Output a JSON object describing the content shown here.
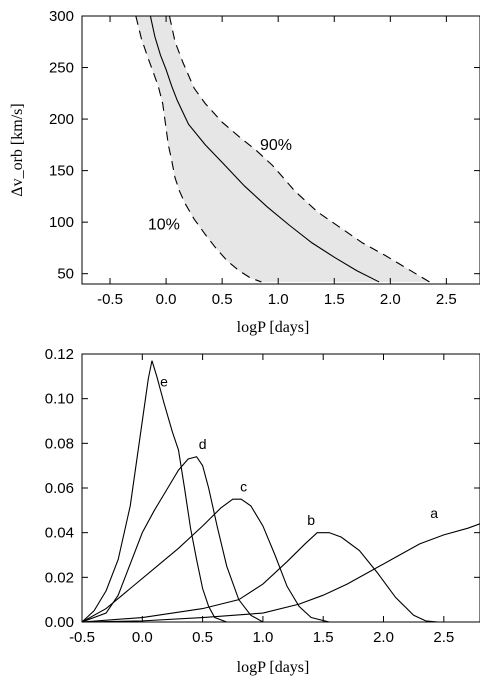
{
  "chart_data": [
    {
      "type": "area",
      "xlabel": "logP [days]",
      "ylabel": "Δv_orb [km/s]",
      "xlim": [
        -0.75,
        2.8
      ],
      "ylim": [
        40,
        300
      ],
      "xticks": [
        -0.5,
        0.0,
        0.5,
        1.0,
        1.5,
        2.0,
        2.5
      ],
      "xtick_labels": [
        "-0.5",
        "0.0",
        "0.5",
        "1.0",
        "1.5",
        "2.0",
        "2.5"
      ],
      "yticks": [
        50,
        100,
        150,
        200,
        250,
        300
      ],
      "ytick_labels": [
        "50",
        "100",
        "150",
        "200",
        "250",
        "300"
      ],
      "grid": false,
      "band_color": "#e6e6e6",
      "series": [
        {
          "name": "90%",
          "style": "dashed",
          "x": [
            0.03,
            0.08,
            0.15,
            0.25,
            0.35,
            0.5,
            0.65,
            0.8,
            0.95,
            1.15,
            1.35,
            1.55,
            1.75,
            1.95,
            2.15,
            2.35
          ],
          "y": [
            300,
            275,
            255,
            230,
            215,
            197,
            183,
            170,
            155,
            130,
            110,
            95,
            80,
            68,
            55,
            42
          ]
        },
        {
          "name": "",
          "style": "solid",
          "x": [
            -0.14,
            -0.1,
            -0.05,
            0.0,
            0.05,
            0.1,
            0.2,
            0.35,
            0.5,
            0.7,
            0.9,
            1.1,
            1.3,
            1.5,
            1.7,
            1.9
          ],
          "y": [
            300,
            280,
            262,
            248,
            232,
            218,
            195,
            175,
            158,
            135,
            115,
            97,
            80,
            66,
            53,
            42
          ]
        },
        {
          "name": "10%",
          "style": "dashed",
          "x": [
            -0.27,
            -0.22,
            -0.17,
            -0.12,
            -0.07,
            -0.03,
            0.02,
            0.05,
            0.08,
            0.12,
            0.17,
            0.25,
            0.35,
            0.45,
            0.55,
            0.65,
            0.75,
            0.85
          ],
          "y": [
            300,
            278,
            262,
            247,
            232,
            215,
            175,
            160,
            143,
            130,
            118,
            103,
            88,
            74,
            62,
            53,
            46,
            42
          ]
        }
      ],
      "annotations": [
        {
          "text": "90%",
          "x": 0.98,
          "y": 170
        },
        {
          "text": "10%",
          "x": -0.02,
          "y": 93
        }
      ]
    },
    {
      "type": "line",
      "xlabel": "logP [days]",
      "ylabel": "",
      "xlim": [
        -0.5,
        2.8
      ],
      "ylim": [
        0,
        0.12
      ],
      "xticks": [
        -0.5,
        0.0,
        0.5,
        1.0,
        1.5,
        2.0,
        2.5
      ],
      "xtick_labels": [
        "-0.5",
        "0.0",
        "0.5",
        "1.0",
        "1.5",
        "2.0",
        "2.5"
      ],
      "yticks": [
        0.0,
        0.02,
        0.04,
        0.06,
        0.08,
        0.1,
        0.12
      ],
      "ytick_labels": [
        "0.00",
        "0.02",
        "0.04",
        "0.06",
        "0.08",
        "0.10",
        "0.12"
      ],
      "grid": false,
      "series": [
        {
          "name": "a",
          "x": [
            -0.5,
            0.0,
            0.5,
            1.0,
            1.3,
            1.5,
            1.7,
            1.9,
            2.1,
            2.3,
            2.5,
            2.7,
            2.8
          ],
          "y": [
            0.0,
            0.0005,
            0.002,
            0.004,
            0.008,
            0.012,
            0.017,
            0.023,
            0.029,
            0.035,
            0.039,
            0.042,
            0.044
          ]
        },
        {
          "name": "b",
          "x": [
            -0.5,
            0.0,
            0.5,
            0.8,
            1.0,
            1.2,
            1.35,
            1.45,
            1.55,
            1.65,
            1.8,
            1.95,
            2.1,
            2.25,
            2.35,
            2.45
          ],
          "y": [
            0.0,
            0.002,
            0.006,
            0.01,
            0.017,
            0.027,
            0.035,
            0.04,
            0.04,
            0.038,
            0.032,
            0.022,
            0.011,
            0.003,
            0.0005,
            0.0
          ]
        },
        {
          "name": "c",
          "x": [
            -0.5,
            -0.3,
            -0.1,
            0.1,
            0.3,
            0.5,
            0.65,
            0.75,
            0.82,
            0.9,
            1.0,
            1.1,
            1.2,
            1.3,
            1.4,
            1.55
          ],
          "y": [
            0.0,
            0.006,
            0.015,
            0.024,
            0.033,
            0.043,
            0.051,
            0.055,
            0.055,
            0.052,
            0.043,
            0.03,
            0.016,
            0.007,
            0.002,
            0.0
          ]
        },
        {
          "name": "d",
          "x": [
            -0.5,
            -0.3,
            -0.2,
            -0.1,
            0.0,
            0.1,
            0.2,
            0.3,
            0.38,
            0.45,
            0.5,
            0.55,
            0.62,
            0.7,
            0.8,
            0.9,
            1.0
          ],
          "y": [
            0.0,
            0.004,
            0.012,
            0.026,
            0.04,
            0.05,
            0.059,
            0.068,
            0.073,
            0.074,
            0.07,
            0.06,
            0.043,
            0.025,
            0.01,
            0.003,
            0.0
          ]
        },
        {
          "name": "e",
          "x": [
            -0.5,
            -0.4,
            -0.3,
            -0.2,
            -0.1,
            0.0,
            0.05,
            0.08,
            0.12,
            0.18,
            0.25,
            0.3,
            0.35,
            0.4,
            0.45,
            0.5,
            0.55,
            0.6,
            0.7
          ],
          "y": [
            0.0,
            0.005,
            0.014,
            0.028,
            0.052,
            0.09,
            0.109,
            0.117,
            0.11,
            0.098,
            0.085,
            0.077,
            0.06,
            0.042,
            0.028,
            0.015,
            0.007,
            0.002,
            0.0
          ]
        }
      ],
      "series_labels": [
        {
          "text": "a",
          "x": 2.42,
          "y": 0.0465
        },
        {
          "text": "b",
          "x": 1.4,
          "y": 0.0435
        },
        {
          "text": "c",
          "x": 0.84,
          "y": 0.0585
        },
        {
          "text": "d",
          "x": 0.5,
          "y": 0.0775
        },
        {
          "text": "e",
          "x": 0.18,
          "y": 0.1055
        }
      ]
    }
  ]
}
